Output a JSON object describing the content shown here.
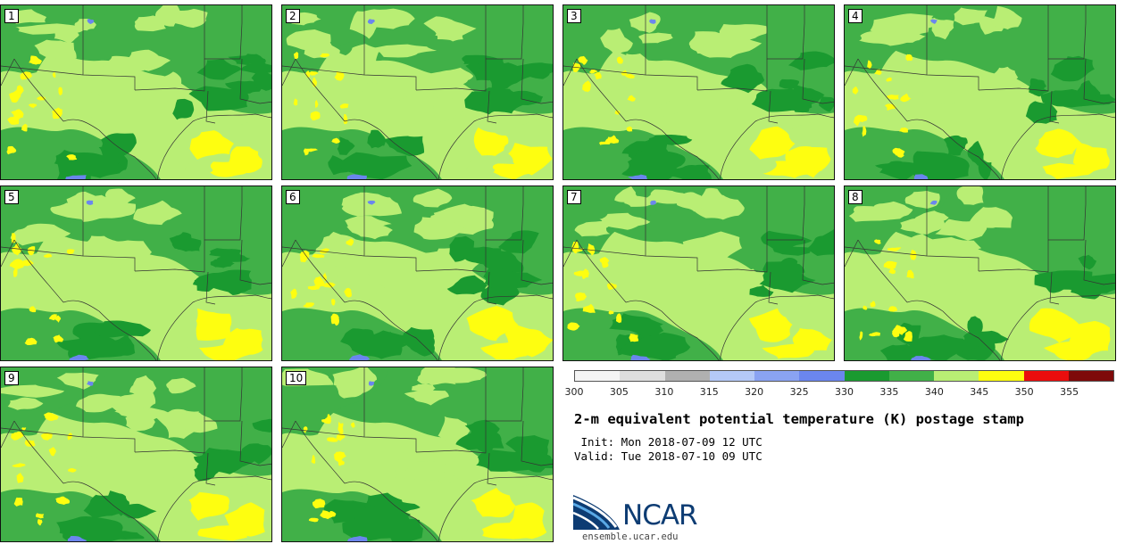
{
  "figure": {
    "title": "2-m equivalent potential temperature (K) postage stamp",
    "init_line": " Init: Mon 2018-07-09 12 UTC",
    "valid_line": "Valid: Tue 2018-07-10 09 UTC",
    "website": "ensemble.ucar.edu",
    "logo_text": "NCAR"
  },
  "members": [
    "1",
    "2",
    "3",
    "4",
    "5",
    "6",
    "7",
    "8",
    "9",
    "10"
  ],
  "colorbar": {
    "ticks": [
      "300",
      "305",
      "310",
      "315",
      "320",
      "325",
      "330",
      "335",
      "340",
      "345",
      "350",
      "355"
    ],
    "colors": [
      "#f4f4f4",
      "#dedede",
      "#b0b0b0",
      "#b4c9f7",
      "#8aa3f2",
      "#6b86ee",
      "#1a9a30",
      "#41b048",
      "#b9ee74",
      "#fefe10",
      "#ea0d0d",
      "#7e0a0a"
    ]
  },
  "map_colors": {
    "light_green": "#b9ee74",
    "medium_green": "#41b048",
    "dark_green": "#1a9a30",
    "yellow": "#fefe10",
    "blue": "#6b86ee",
    "boundary": "#333333"
  }
}
